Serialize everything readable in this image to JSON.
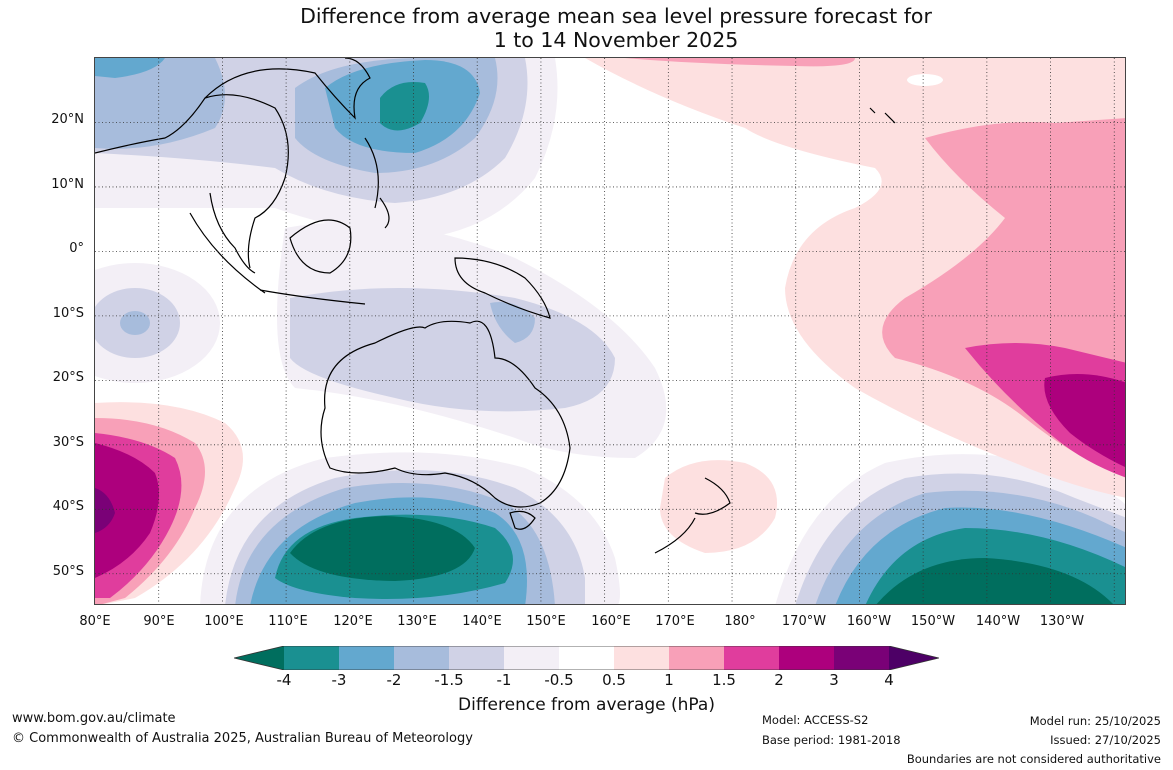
{
  "title": {
    "line1": "Difference from average mean sea level pressure forecast for",
    "line2": "1 to 14 November 2025"
  },
  "map": {
    "lat_labels": [
      "20°N",
      "10°N",
      "0°",
      "10°S",
      "20°S",
      "30°S",
      "40°S",
      "50°S"
    ],
    "lon_labels": [
      "80°E",
      "90°E",
      "100°E",
      "110°E",
      "120°E",
      "130°E",
      "140°E",
      "150°E",
      "160°E",
      "170°E",
      "180°",
      "170°W",
      "160°W",
      "150°W",
      "140°W",
      "130°W"
    ],
    "extent": {
      "lon_min": 80,
      "lon_max": 242,
      "lat_min": -55,
      "lat_max": 30
    },
    "gridlines": true
  },
  "colorbar": {
    "label": "Difference from average (hPa)",
    "ticks": [
      "-4",
      "-3",
      "-2",
      "-1.5",
      "-1",
      "-0.5",
      "0.5",
      "1",
      "1.5",
      "2",
      "3",
      "4"
    ],
    "colors": [
      "#006e5e",
      "#1a9091",
      "#63a8cf",
      "#a7bcdc",
      "#d0d2e6",
      "#f3eff6",
      "#ffffff",
      "#fde0e0",
      "#f8a0b8",
      "#e03d9d",
      "#ad007d",
      "#7a0177",
      "#4d0066"
    ]
  },
  "footer": {
    "website": "www.bom.gov.au/climate",
    "copyright": "© Commonwealth of Australia 2025, Australian Bureau of Meteorology",
    "model": "Model: ACCESS-S2",
    "base_period": "Base period: 1981-2018",
    "model_run": "Model run: 25/10/2025",
    "issued": "Issued: 27/10/2025",
    "disclaimer": "Boundaries are not considered authoritative"
  }
}
